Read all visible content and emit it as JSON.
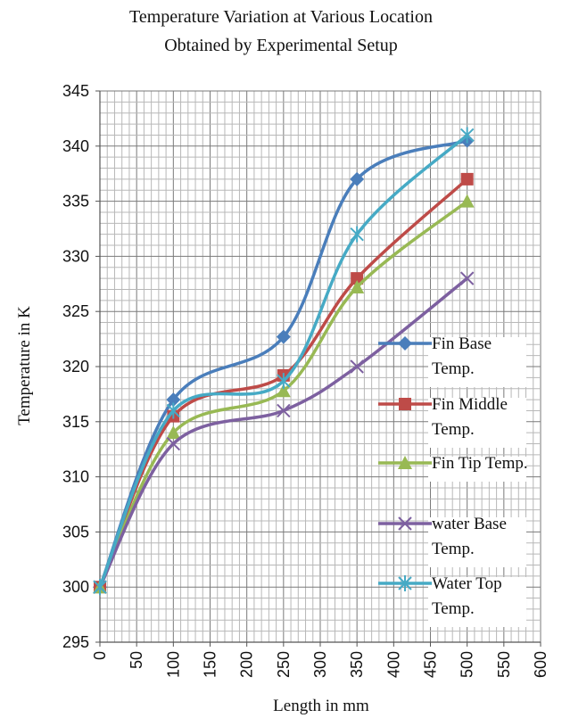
{
  "chart_data": {
    "type": "line",
    "title_line1": "Temperature Variation  at Various  Location",
    "title_line2": "Obtained by Experimental   Setup",
    "xlabel": "Length in mm",
    "ylabel": "Temperature in K",
    "xlim": [
      0,
      600
    ],
    "ylim": [
      295,
      345
    ],
    "xticks": [
      "0",
      "50",
      "100",
      "150",
      "200",
      "250",
      "300",
      "350",
      "400",
      "450",
      "500",
      "550",
      "600"
    ],
    "yticks": [
      "295",
      "300",
      "305",
      "310",
      "315",
      "320",
      "325",
      "330",
      "335",
      "340",
      "345"
    ],
    "grid": true,
    "smooth": true,
    "x": [
      0,
      100,
      250,
      350,
      500
    ],
    "series": [
      {
        "name": "Fin Base Temp.",
        "legend_lines": [
          "Fin Base",
          "Temp."
        ],
        "color": "#4a7ebb",
        "marker": "diamond",
        "values": [
          300,
          317,
          322.7,
          337,
          340.5
        ]
      },
      {
        "name": "Fin Middle Temp.",
        "legend_lines": [
          "Fin Middle",
          "Temp."
        ],
        "color": "#be4b48",
        "marker": "square",
        "values": [
          300,
          315.5,
          319.2,
          328,
          337
        ]
      },
      {
        "name": "Fin Tip Temp.",
        "legend_lines": [
          "Fin Tip Temp."
        ],
        "color": "#98b954",
        "marker": "triangle",
        "values": [
          300,
          314,
          317.8,
          327.2,
          335
        ]
      },
      {
        "name": "water Base Temp.",
        "legend_lines": [
          "water Base",
          "Temp."
        ],
        "color": "#7d60a0",
        "marker": "x",
        "values": [
          300,
          313,
          316,
          320,
          328
        ]
      },
      {
        "name": "Water Top Temp.",
        "legend_lines": [
          "Water Top",
          "Temp."
        ],
        "color": "#46aac5",
        "marker": "star",
        "values": [
          300,
          316,
          318.7,
          332,
          341
        ]
      }
    ]
  }
}
